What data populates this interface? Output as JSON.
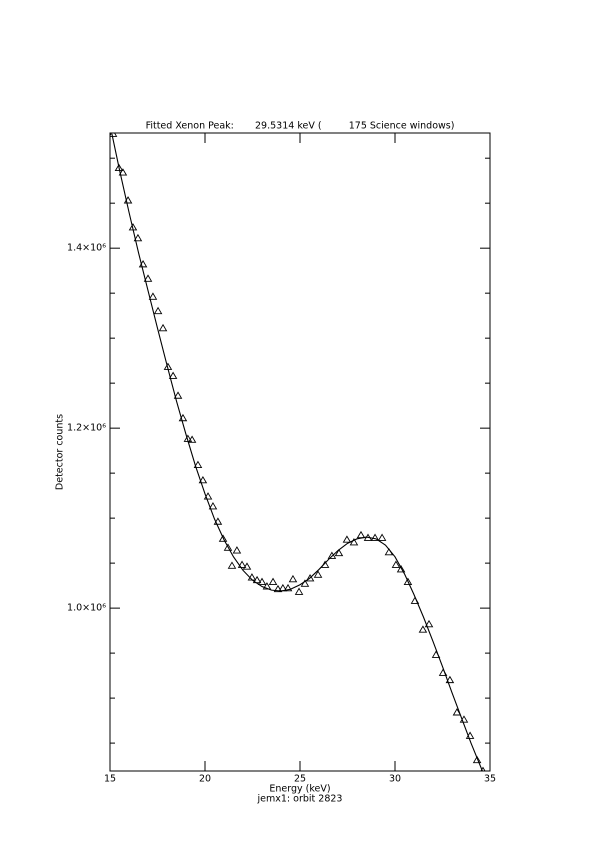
{
  "chart_data": {
    "type": "scatter",
    "title": "Fitted Xenon Peak:       29.5314 keV (         175 Science windows)",
    "x_label": "Energy (keV)",
    "y_label": "Detector counts",
    "subtitle": "jemx1: orbit 2823",
    "xlim": [
      15,
      35
    ],
    "xticks": [
      15,
      20,
      25,
      30,
      35
    ],
    "ylim": [
      819000,
      1528000
    ],
    "yticks": [
      {
        "value": 1000000,
        "label": "1.0×10⁶"
      },
      {
        "value": 1200000,
        "label": "1.2×10⁶"
      },
      {
        "value": 1400000,
        "label": "1.4×10⁶"
      }
    ],
    "yminorticks": [
      850000,
      900000,
      950000,
      1050000,
      1100000,
      1150000,
      1250000,
      1300000,
      1350000,
      1450000,
      1500000
    ],
    "series": [
      {
        "type": "scatter",
        "color": "#000000",
        "x": [
          15.16,
          15.47,
          15.68,
          15.95,
          16.21,
          16.47,
          16.74,
          17.0,
          17.26,
          17.53,
          17.79,
          18.05,
          18.32,
          18.58,
          18.84,
          19.1,
          19.32,
          19.63,
          19.89,
          20.16,
          20.42,
          20.68,
          20.95,
          21.21,
          21.42,
          21.68,
          21.95,
          22.21,
          22.47,
          22.74,
          23.0,
          23.26,
          23.58,
          23.84,
          24.1,
          24.37,
          24.63,
          24.95,
          25.26,
          25.53,
          25.95,
          26.32,
          26.68,
          27.05,
          27.47,
          27.84,
          28.21,
          28.58,
          28.95,
          29.32,
          29.68,
          30.05,
          30.32,
          30.68,
          31.05,
          31.47,
          31.79,
          32.16,
          32.53,
          32.89,
          33.26,
          33.63,
          33.95,
          34.32,
          34.63
        ],
        "values": [
          1527000,
          1489000,
          1484000,
          1453000,
          1423000,
          1411000,
          1382000,
          1366000,
          1346000,
          1330000,
          1311000,
          1268000,
          1258000,
          1236000,
          1211000,
          1188000,
          1187000,
          1159000,
          1142000,
          1124000,
          1113000,
          1096000,
          1077000,
          1067000,
          1047000,
          1064000,
          1048000,
          1046000,
          1034000,
          1031000,
          1029000,
          1024000,
          1029000,
          1021000,
          1022000,
          1022000,
          1032000,
          1018000,
          1027000,
          1033000,
          1037000,
          1048000,
          1058000,
          1061000,
          1076000,
          1073000,
          1081000,
          1078000,
          1078000,
          1078000,
          1062000,
          1048000,
          1043000,
          1029000,
          1008000,
          976000,
          982000,
          948000,
          928000,
          920000,
          884000,
          876000,
          858000,
          831000,
          819000
        ]
      },
      {
        "type": "line",
        "color": "#000000",
        "x": [
          15.1,
          15.5,
          16,
          16.5,
          17,
          17.5,
          18,
          18.5,
          19,
          19.5,
          20,
          20.5,
          21,
          21.5,
          22,
          22.5,
          23,
          23.5,
          24,
          24.5,
          25,
          25.5,
          26,
          26.5,
          27,
          27.5,
          28,
          28.5,
          29,
          29.5,
          30,
          30.5,
          31,
          31.5,
          32,
          32.5,
          33,
          33.5,
          34,
          34.6
        ],
        "values": [
          1527000,
          1487000,
          1440000,
          1395000,
          1353000,
          1311000,
          1270000,
          1230000,
          1193000,
          1158000,
          1127000,
          1099000,
          1076000,
          1057000,
          1042000,
          1031000,
          1024000,
          1020000,
          1019000,
          1021000,
          1026000,
          1033000,
          1043000,
          1054000,
          1064000,
          1072000,
          1077000,
          1079000,
          1077000,
          1070000,
          1057000,
          1038000,
          1015000,
          990000,
          963000,
          935000,
          906000,
          878000,
          850000,
          819000
        ]
      }
    ]
  }
}
